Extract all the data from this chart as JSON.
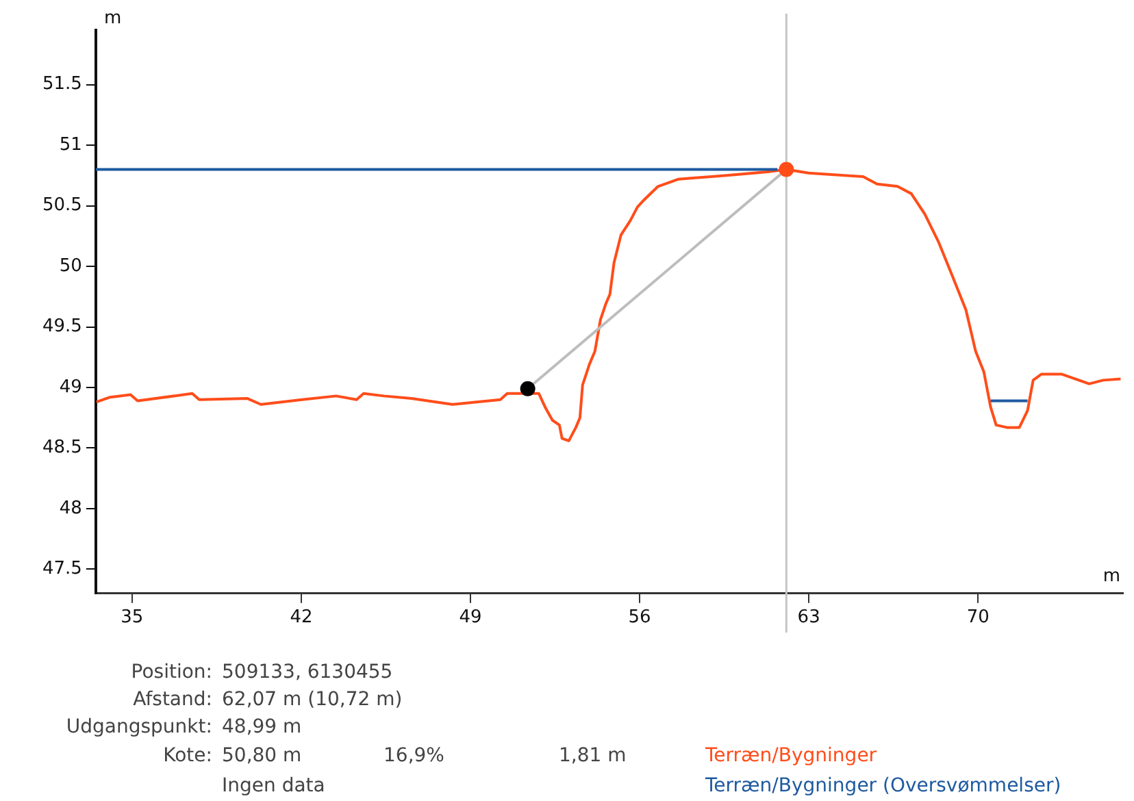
{
  "chart_data": {
    "type": "line",
    "xlabel": "m",
    "ylabel": "m",
    "xlim": [
      33.5,
      76
    ],
    "ylim": [
      47.3,
      51.95
    ],
    "xticks": [
      35,
      42,
      49,
      56,
      63,
      70
    ],
    "yticks": [
      47.5,
      48,
      48.5,
      49,
      49.5,
      50,
      50.5,
      51,
      51.5
    ],
    "grid": false,
    "legend": "bottom",
    "marker": "none",
    "ref_lines": [
      {
        "axis": "x",
        "value": 62.07,
        "color": "#c4c4c4"
      }
    ],
    "series": [
      {
        "name": "Terræn/Bygninger",
        "color": "#ff4d1a",
        "x": [
          33.53,
          34.09,
          34.94,
          35.23,
          37.49,
          37.78,
          39.76,
          40.33,
          42.03,
          43.44,
          44.29,
          44.58,
          45.42,
          46.56,
          48.26,
          50.24,
          50.52,
          51.83,
          52.11,
          52.39,
          52.68,
          52.79,
          53.07,
          53.36,
          53.53,
          53.64,
          53.92,
          54.15,
          54.38,
          54.6,
          54.77,
          54.94,
          55.23,
          55.62,
          55.91,
          56.19,
          56.76,
          57.61,
          59.59,
          61.29,
          62.07,
          62.99,
          65.25,
          65.82,
          66.67,
          67.24,
          67.8,
          68.37,
          68.94,
          69.5,
          69.9,
          70.24,
          70.52,
          70.75,
          71.2,
          71.71,
          72.05,
          72.28,
          72.62,
          73.47,
          74.6,
          75.17,
          75.9
        ],
        "values": [
          48.88,
          48.92,
          48.94,
          48.89,
          48.95,
          48.9,
          48.91,
          48.86,
          48.9,
          48.93,
          48.9,
          48.95,
          48.93,
          48.91,
          48.86,
          48.9,
          48.95,
          48.95,
          48.83,
          48.73,
          48.69,
          48.58,
          48.56,
          48.67,
          48.75,
          49.02,
          49.19,
          49.3,
          49.56,
          49.69,
          49.77,
          50.03,
          50.26,
          50.38,
          50.49,
          50.55,
          50.66,
          50.72,
          50.75,
          50.78,
          50.8,
          50.77,
          50.74,
          50.68,
          50.66,
          50.6,
          50.43,
          50.2,
          49.92,
          49.64,
          49.3,
          49.13,
          48.84,
          48.69,
          48.67,
          48.67,
          48.81,
          49.06,
          49.11,
          49.11,
          49.03,
          49.06,
          49.07
        ]
      },
      {
        "name": "Terræn/Bygninger (Oversvømmelser)",
        "color": "#1f5aa0",
        "x": [
          33.5,
          61.7,
          66,
          70.52,
          72.05
        ],
        "values": [
          50.8,
          50.8,
          null,
          48.89,
          48.89
        ]
      },
      {
        "color": "#bdbdbd",
        "x": [
          51.37,
          62.07
        ],
        "values": [
          48.99,
          50.8
        ]
      },
      {
        "type": "scatter",
        "marker": "circle",
        "color": "#000000",
        "x": [
          51.37
        ],
        "values": [
          48.99
        ]
      },
      {
        "type": "scatter",
        "marker": "circle",
        "color": "#ff4d1a",
        "x": [
          62.07
        ],
        "values": [
          50.8
        ]
      }
    ],
    "annotations": [
      "Position:",
      "509133, 6130455",
      "Afstand:",
      "62,07 m (10,72 m)",
      "Udgangspunkt:",
      "48,99 m",
      "Kote:",
      "50,80 m",
      "16,9%",
      "1,81 m",
      "Ingen data"
    ]
  }
}
